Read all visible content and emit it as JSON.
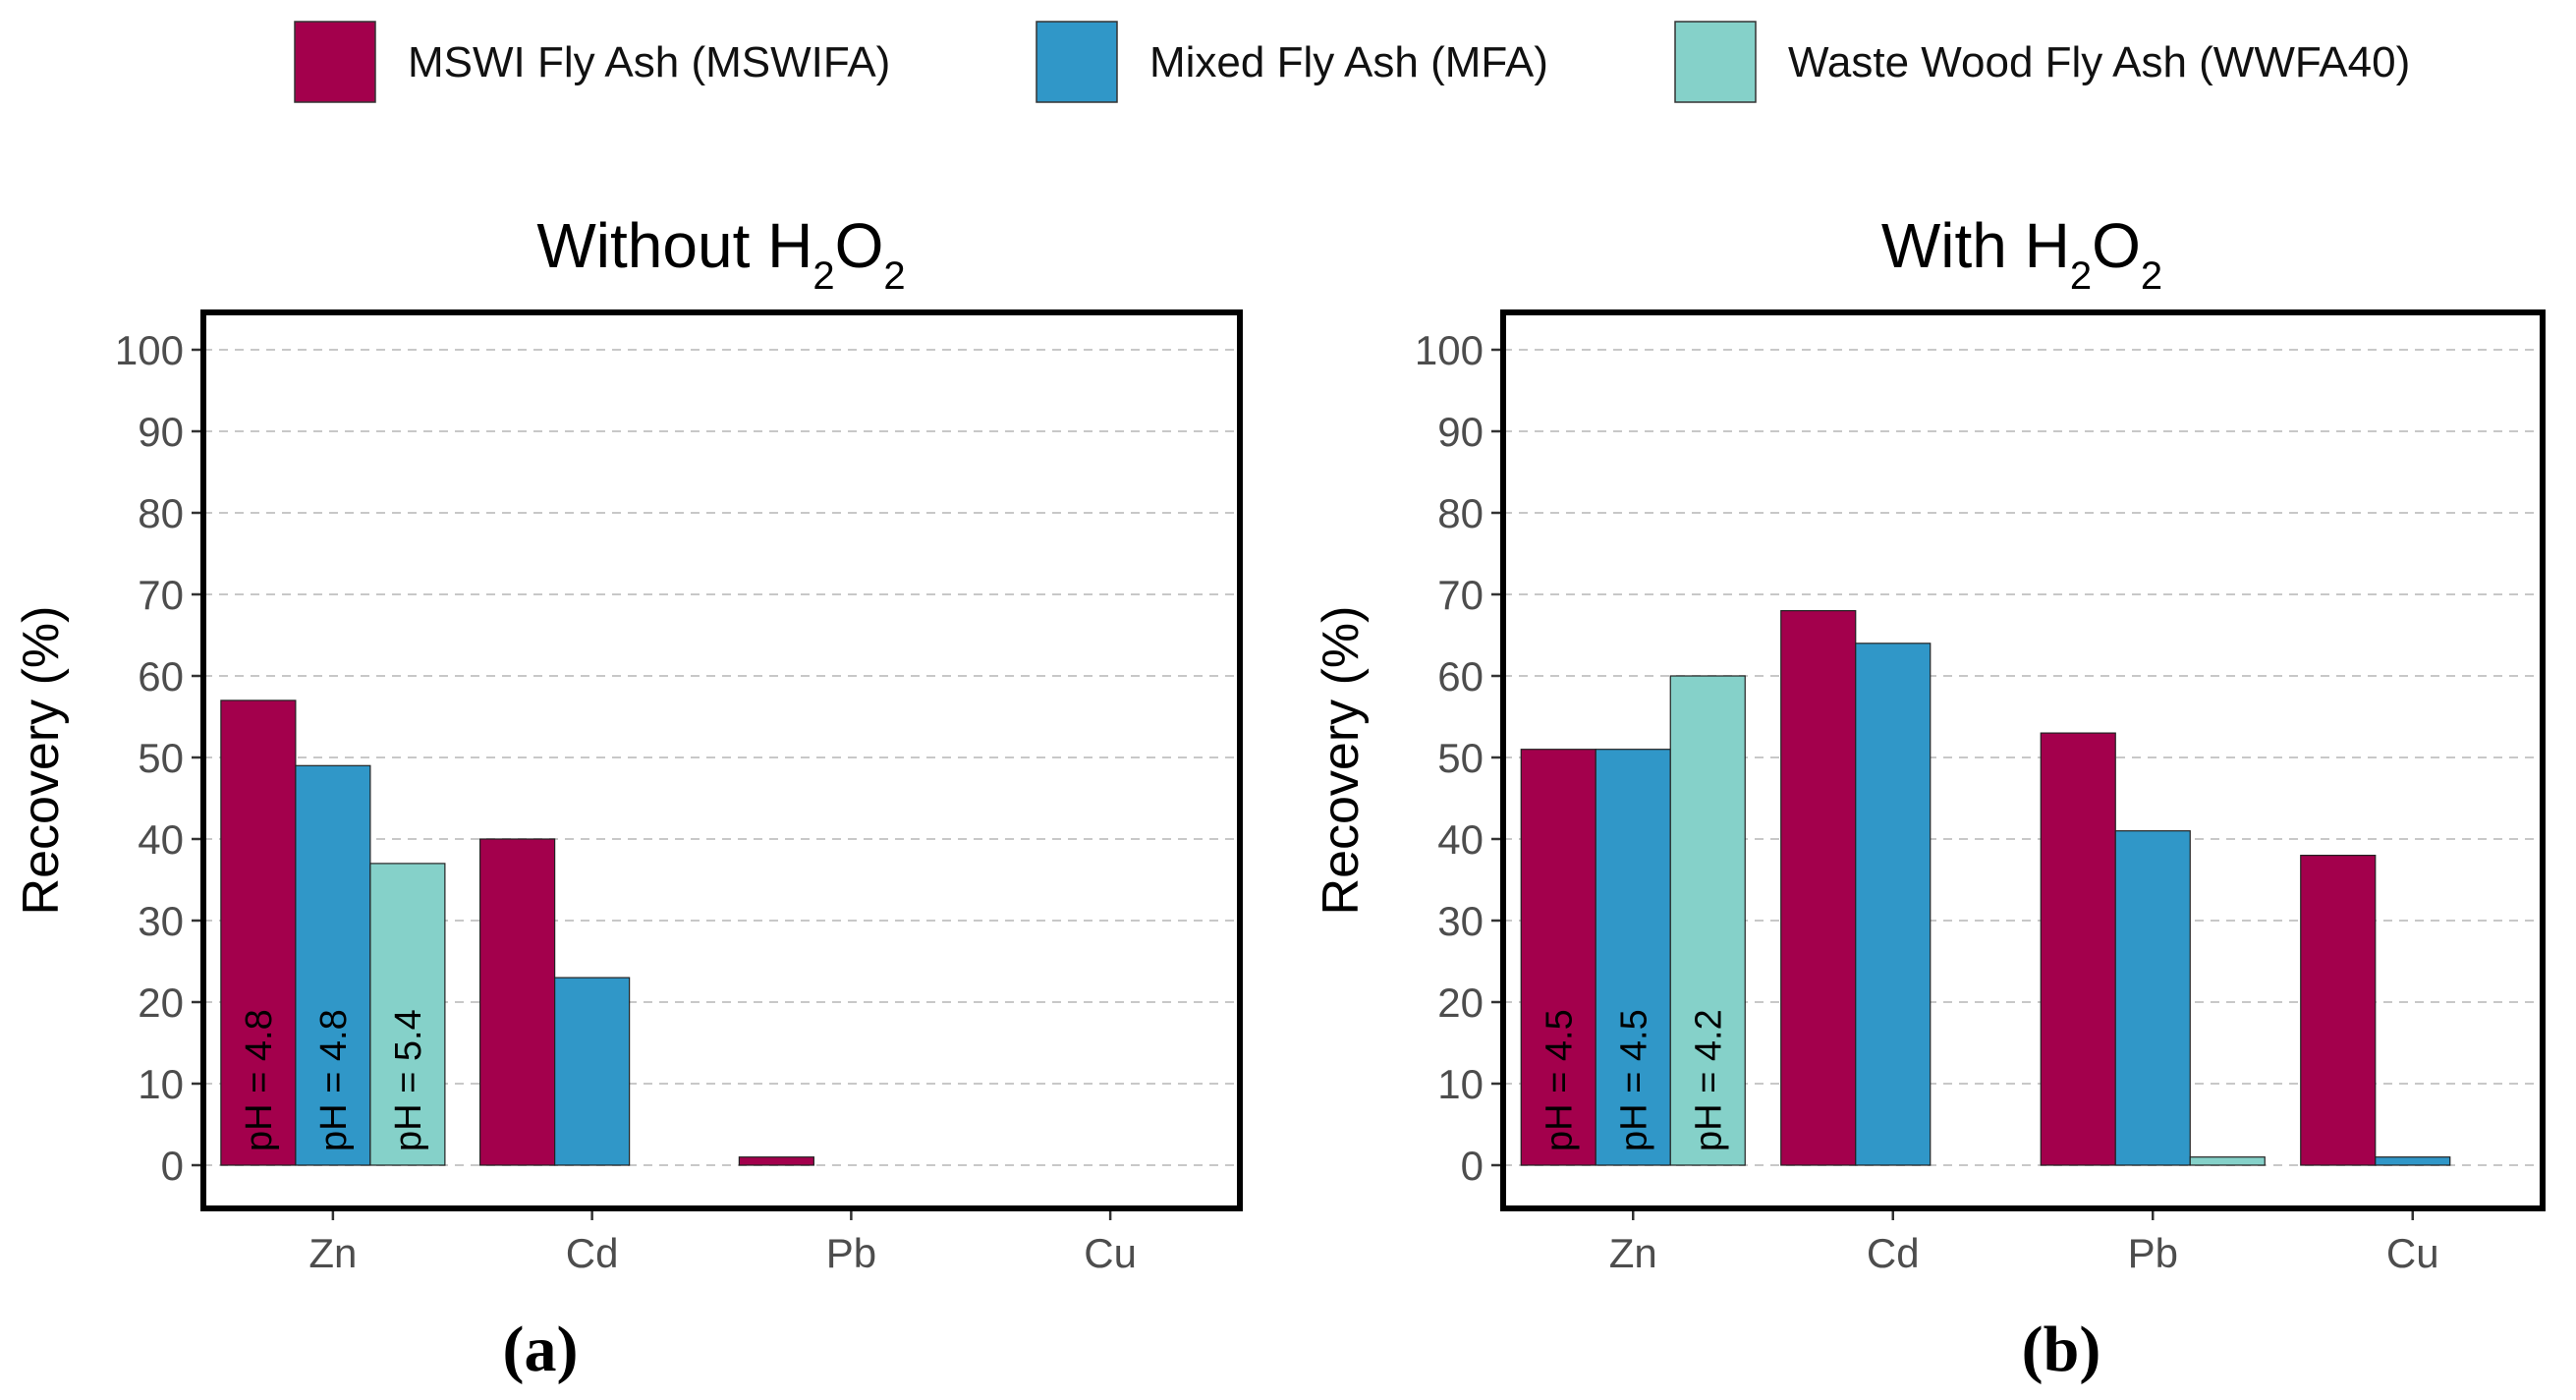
{
  "colors": {
    "MSWIFA": "#a3004c",
    "MFA": "#3097c8",
    "WWFA40": "#85d1c9",
    "grid": "#c8c8c8",
    "frame": "#000000"
  },
  "legend": [
    {
      "key": "MSWIFA",
      "label": "MSWI Fly Ash (MSWIFA)"
    },
    {
      "key": "MFA",
      "label": "Mixed Fly Ash (MFA)"
    },
    {
      "key": "WWFA40",
      "label": "Waste Wood Fly Ash (WWFA40)"
    }
  ],
  "chart_data": [
    {
      "type": "bar",
      "panel": "a",
      "panel_label": "(a)",
      "title_main": "Without H",
      "title_sub1": "2",
      "title_mid": "O",
      "title_sub2": "2",
      "ylabel": "Recovery (%)",
      "xlabel": "",
      "ylim": [
        0,
        100
      ],
      "yticks": [
        0,
        10,
        20,
        30,
        40,
        50,
        60,
        70,
        80,
        90,
        100
      ],
      "categories": [
        "Zn",
        "Cd",
        "Pb",
        "Cu"
      ],
      "series": [
        {
          "key": "MSWIFA",
          "name": "MSWI Fly Ash (MSWIFA)",
          "values": [
            57,
            40,
            1,
            0
          ]
        },
        {
          "key": "MFA",
          "name": "Mixed Fly Ash (MFA)",
          "values": [
            49,
            23,
            0,
            0
          ]
        },
        {
          "key": "WWFA40",
          "name": "Waste Wood Fly Ash (WWFA40)",
          "values": [
            37,
            0,
            0,
            0
          ]
        }
      ],
      "annotations": [
        {
          "category": "Zn",
          "series": "MSWIFA",
          "text": "pH = 4.8"
        },
        {
          "category": "Zn",
          "series": "MFA",
          "text": "pH = 4.8"
        },
        {
          "category": "Zn",
          "series": "WWFA40",
          "text": "pH = 5.4"
        }
      ],
      "grid": true
    },
    {
      "type": "bar",
      "panel": "b",
      "panel_label": "(b)",
      "title_main": "With H",
      "title_sub1": "2",
      "title_mid": "O",
      "title_sub2": "2",
      "ylabel": "Recovery (%)",
      "xlabel": "",
      "ylim": [
        0,
        100
      ],
      "yticks": [
        0,
        10,
        20,
        30,
        40,
        50,
        60,
        70,
        80,
        90,
        100
      ],
      "categories": [
        "Zn",
        "Cd",
        "Pb",
        "Cu"
      ],
      "series": [
        {
          "key": "MSWIFA",
          "name": "MSWI Fly Ash (MSWIFA)",
          "values": [
            51,
            68,
            53,
            38
          ]
        },
        {
          "key": "MFA",
          "name": "Mixed Fly Ash (MFA)",
          "values": [
            51,
            64,
            41,
            1
          ]
        },
        {
          "key": "WWFA40",
          "name": "Waste Wood Fly Ash (WWFA40)",
          "values": [
            60,
            0,
            1,
            0
          ]
        }
      ],
      "annotations": [
        {
          "category": "Zn",
          "series": "MSWIFA",
          "text": "pH = 4.5"
        },
        {
          "category": "Zn",
          "series": "MFA",
          "text": "pH = 4.5"
        },
        {
          "category": "Zn",
          "series": "WWFA40",
          "text": "pH = 4.2"
        }
      ],
      "grid": true
    }
  ]
}
